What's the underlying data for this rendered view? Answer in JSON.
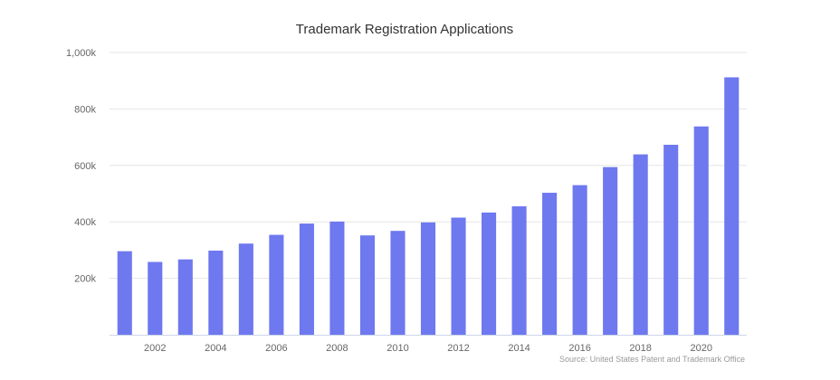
{
  "chart_data": {
    "type": "bar",
    "title": "Trademark Registration Applications",
    "credits": "Source: United States Patent and Trademark Office",
    "xlabel": "",
    "ylabel": "",
    "categories": [
      "2001",
      "2002",
      "2003",
      "2004",
      "2005",
      "2006",
      "2007",
      "2008",
      "2009",
      "2010",
      "2011",
      "2012",
      "2013",
      "2014",
      "2015",
      "2016",
      "2017",
      "2018",
      "2019",
      "2020",
      "2021"
    ],
    "x_tick_labels": [
      "2002",
      "2004",
      "2006",
      "2008",
      "2010",
      "2012",
      "2014",
      "2016",
      "2018",
      "2020"
    ],
    "y_tick_labels": [
      "200k",
      "400k",
      "600k",
      "800k",
      "1,000k"
    ],
    "y_ticks": [
      200000,
      400000,
      600000,
      800000,
      1000000
    ],
    "values": [
      296000,
      258000,
      267000,
      298000,
      323000,
      354000,
      394000,
      401000,
      352000,
      368000,
      398000,
      415000,
      433000,
      455000,
      503000,
      530000,
      594000,
      639000,
      673000,
      738000,
      912000
    ],
    "ylim": [
      0,
      1000000
    ],
    "bar_color": "#6e78ef",
    "grid": true,
    "legend": "none"
  }
}
